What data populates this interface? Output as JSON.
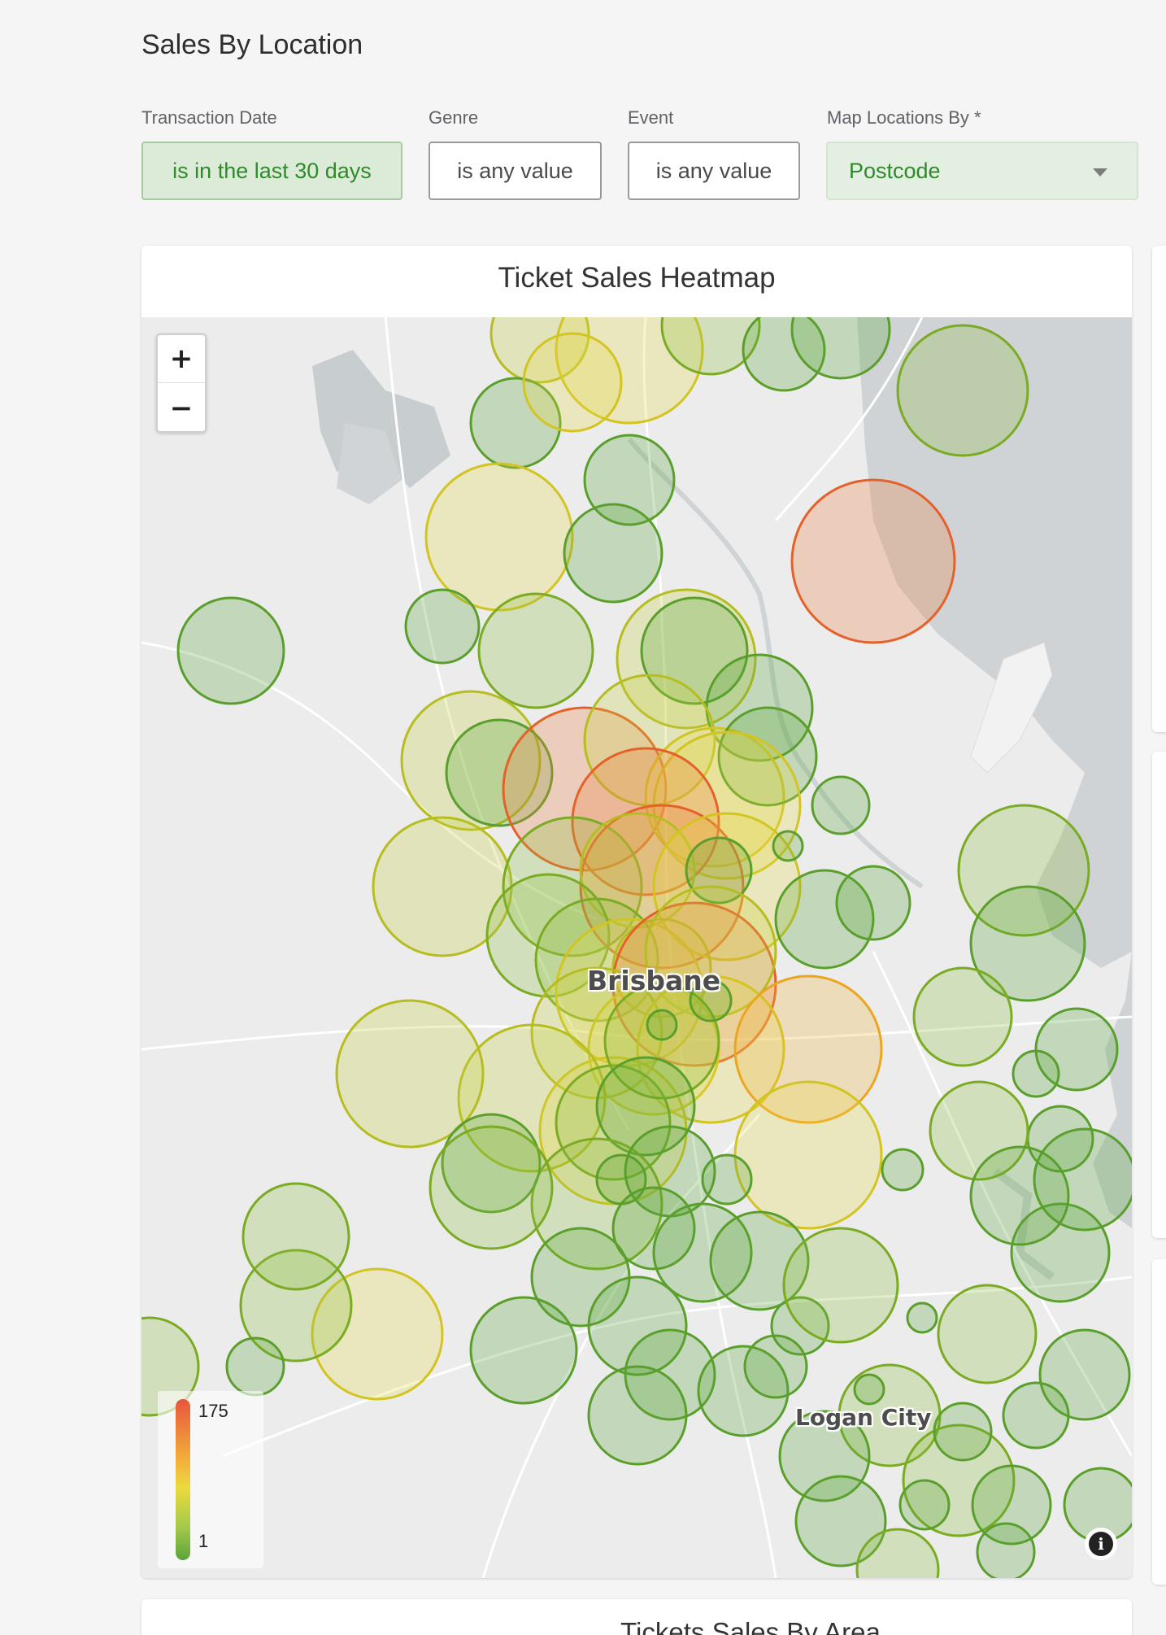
{
  "page": {
    "title": "Sales By Location"
  },
  "filters": [
    {
      "label": "Transaction Date",
      "value": "is in the last 30 days",
      "state": "active"
    },
    {
      "label": "Genre",
      "value": "is any value",
      "state": "default"
    },
    {
      "label": "Event",
      "value": "is any value",
      "state": "default"
    },
    {
      "label": "Map Locations By *",
      "value": "Postcode",
      "state": "select"
    }
  ],
  "heatmap": {
    "title": "Ticket Sales Heatmap",
    "zoom_in": "+",
    "zoom_out": "−",
    "legend": {
      "max": "175",
      "min": "1"
    },
    "labels": {
      "city": "Brisbane",
      "secondary": "Logan City"
    },
    "info_icon": "info-icon",
    "colors": {
      "low": "#5aa43a",
      "mid": "#ecd93e",
      "high": "#e8553c",
      "water": "#cfd3d5"
    }
  },
  "next_card": {
    "title": "Tickets Sales By Area"
  }
}
